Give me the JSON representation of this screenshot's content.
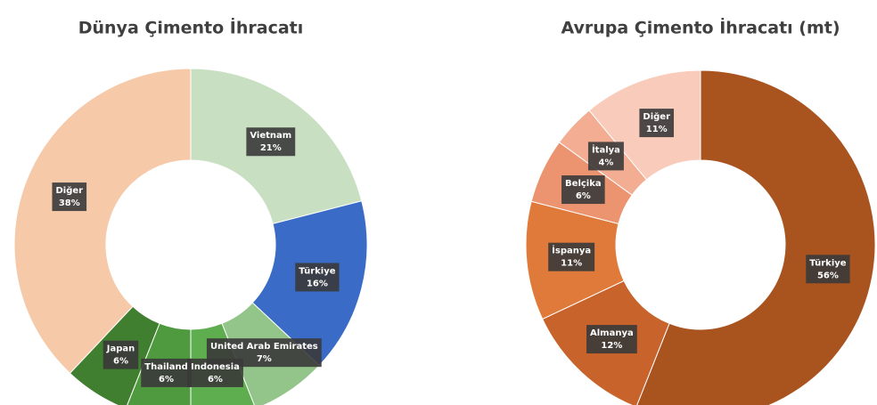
{
  "chart_data": [
    {
      "type": "donut",
      "title": "Dünya Çimento İhracatı",
      "categories": [
        "Vietnam",
        "Türkiye",
        "United Arab Emirates",
        "Indonesia",
        "Thailand",
        "Japan",
        "Diğer"
      ],
      "values": [
        21,
        16,
        7,
        6,
        6,
        6,
        38
      ],
      "value_labels": [
        "21%",
        "16%",
        "7%",
        "6%",
        "6%",
        "6%",
        "38%"
      ],
      "colors": [
        "#c9dfc2",
        "#3a6cc7",
        "#93c48a",
        "#5ead4e",
        "#4f9a3f",
        "#3f7f2f",
        "#f6c9a9"
      ]
    },
    {
      "type": "donut",
      "title": "Avrupa Çimento İhracatı (mt)",
      "categories": [
        "Türkiye",
        "Almanya",
        "İspanya",
        "Belçika",
        "İtalya",
        "Diğer"
      ],
      "values": [
        56,
        12,
        11,
        6,
        4,
        11
      ],
      "value_labels": [
        "56%",
        "12%",
        "11%",
        "6%",
        "4%",
        "11%"
      ],
      "colors": [
        "#a9531f",
        "#c8632b",
        "#e07a3a",
        "#ec9470",
        "#f2ad93",
        "#f8cbbb"
      ]
    }
  ]
}
